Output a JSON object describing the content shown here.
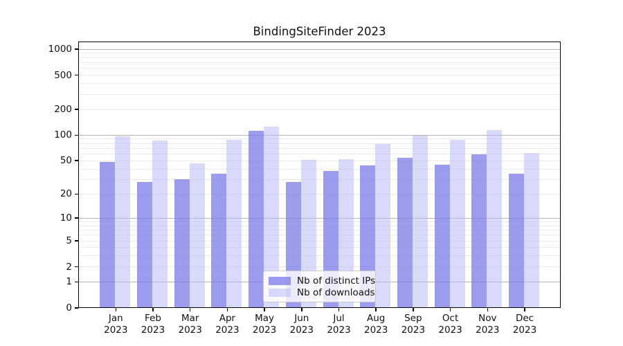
{
  "title": "BindingSiteFinder 2023",
  "chart_data": {
    "type": "bar",
    "title": "BindingSiteFinder 2023",
    "categories": [
      "Jan 2023",
      "Feb 2023",
      "Mar 2023",
      "Apr 2023",
      "May 2023",
      "Jun 2023",
      "Jul 2023",
      "Aug 2023",
      "Sep 2023",
      "Oct 2023",
      "Nov 2023",
      "Dec 2023"
    ],
    "series": [
      {
        "name": "Nb of distinct IPs",
        "values": [
          48,
          28,
          30,
          35,
          113,
          28,
          38,
          44,
          54,
          45,
          60,
          35
        ],
        "color": "rgba(123,123,232,0.75)",
        "color_hex": "#9d9dee"
      },
      {
        "name": "Nb of downloads",
        "values": [
          96,
          87,
          47,
          88,
          125,
          51,
          52,
          79,
          99,
          88,
          115,
          62
        ],
        "color": "rgba(185,185,245,0.55)",
        "color_hex": "#d8d8fa"
      }
    ],
    "yscale": "log10(x+1)",
    "ytick_labels": [
      "0",
      "1",
      "2",
      "5",
      "10",
      "20",
      "50",
      "100",
      "200",
      "500",
      "1000"
    ],
    "ytick_values": [
      0,
      1,
      2,
      5,
      10,
      20,
      50,
      100,
      200,
      500,
      1000
    ],
    "grid": {
      "major_at": [
        1,
        10,
        100,
        1000
      ],
      "minor_at": [
        2,
        3,
        4,
        5,
        6,
        7,
        8,
        9,
        20,
        30,
        40,
        50,
        60,
        70,
        80,
        90,
        200,
        300,
        400,
        500,
        600,
        700,
        800,
        900
      ],
      "major_color": "#b3b3b3",
      "minor_color": "#eaeaea"
    },
    "legend_position": "bottom-center",
    "xlabel": "",
    "ylabel": ""
  }
}
